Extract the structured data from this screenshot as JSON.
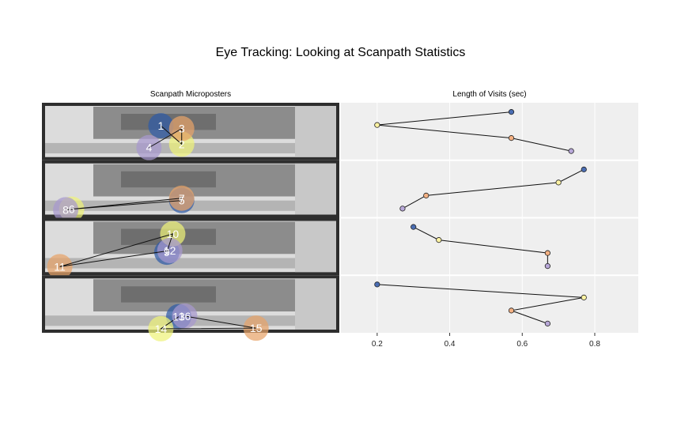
{
  "title": "Eye Tracking: Looking at Scanpath Statistics",
  "chart_data": [
    {
      "type": "image-panels",
      "title": "Scanpath Microposters",
      "panels": [
        {
          "fixations": [
            "1",
            "2",
            "3",
            "4"
          ]
        },
        {
          "fixations": [
            "5",
            "6",
            "7",
            "8"
          ]
        },
        {
          "fixations": [
            "9",
            "10",
            "11",
            "12"
          ]
        },
        {
          "fixations": [
            "13",
            "14",
            "15",
            "16"
          ]
        }
      ]
    },
    {
      "type": "scatter",
      "title": "Length of Visits (sec)",
      "xlabel": "",
      "ylabel": "",
      "xlim": [
        0.1,
        0.92
      ],
      "xticks": [
        "0.2",
        "0.4",
        "0.6",
        "0.8"
      ],
      "grid": true,
      "panels": [
        {
          "points": [
            {
              "x": 0.57,
              "color": "#4a6db3"
            },
            {
              "x": 0.2,
              "color": "#fef3a3"
            },
            {
              "x": 0.57,
              "color": "#f4b183"
            },
            {
              "x": 0.735,
              "color": "#b8a8d9"
            }
          ]
        },
        {
          "points": [
            {
              "x": 0.77,
              "color": "#4a6db3"
            },
            {
              "x": 0.7,
              "color": "#fef3a3"
            },
            {
              "x": 0.335,
              "color": "#f4b183"
            },
            {
              "x": 0.27,
              "color": "#b8a8d9"
            }
          ]
        },
        {
          "points": [
            {
              "x": 0.3,
              "color": "#4a6db3"
            },
            {
              "x": 0.37,
              "color": "#fef3a3"
            },
            {
              "x": 0.67,
              "color": "#f4b183"
            },
            {
              "x": 0.67,
              "color": "#b8a8d9"
            }
          ]
        },
        {
          "points": [
            {
              "x": 0.2,
              "color": "#4a6db3"
            },
            {
              "x": 0.77,
              "color": "#fef3a3"
            },
            {
              "x": 0.57,
              "color": "#f4b183"
            },
            {
              "x": 0.67,
              "color": "#b8a8d9"
            }
          ]
        }
      ]
    }
  ]
}
